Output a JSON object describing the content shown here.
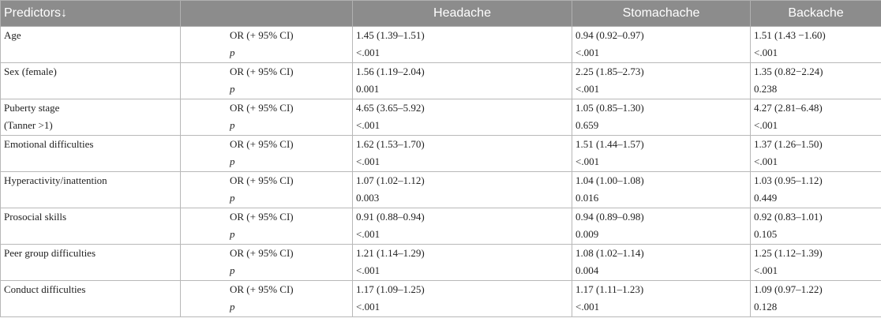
{
  "header": {
    "columns": [
      "Predictors↓",
      "Headache",
      "Stomachache",
      "Backache"
    ]
  },
  "rows": [
    {
      "predictor": "Age",
      "labels": [
        "OR (+ 95% CI)",
        "p"
      ],
      "headache": [
        "1.45 (1.39–1.51)",
        "<.001"
      ],
      "stomachache": [
        "0.94 (0.92–0.97)",
        "<.001"
      ],
      "backache": [
        "1.51 (1.43 −1.60)",
        "<.001"
      ]
    },
    {
      "predictor": "Sex (female)",
      "labels": [
        "OR (+ 95% CI)",
        "p"
      ],
      "headache": [
        "1.56 (1.19–2.04)",
        "0.001"
      ],
      "stomachache": [
        "2.25 (1.85–2.73)",
        "<.001"
      ],
      "backache": [
        "1.35 (0.82−2.24)",
        "0.238"
      ]
    },
    {
      "predictor": [
        "Puberty stage",
        "(Tanner >1)"
      ],
      "labels": [
        "OR (+ 95% CI)",
        "p"
      ],
      "headache": [
        "4.65 (3.65–5.92)",
        "<.001"
      ],
      "stomachache": [
        "1.05 (0.85–1.30)",
        "0.659"
      ],
      "backache": [
        "4.27 (2.81–6.48)",
        "<.001"
      ]
    },
    {
      "predictor": "Emotional difficulties",
      "labels": [
        "OR (+ 95% CI)",
        "p"
      ],
      "headache": [
        "1.62 (1.53–1.70)",
        "<.001"
      ],
      "stomachache": [
        "1.51 (1.44–1.57)",
        "<.001"
      ],
      "backache": [
        "1.37 (1.26–1.50)",
        "<.001"
      ]
    },
    {
      "predictor": "Hyperactivity/inattention",
      "labels": [
        "OR (+ 95% CI)",
        "p"
      ],
      "headache": [
        "1.07 (1.02–1.12)",
        "0.003"
      ],
      "stomachache": [
        "1.04 (1.00–1.08)",
        "0.016"
      ],
      "backache": [
        "1.03 (0.95–1.12)",
        "0.449"
      ]
    },
    {
      "predictor": "Prosocial skills",
      "labels": [
        "OR (+ 95% CI)",
        "p"
      ],
      "headache": [
        "0.91 (0.88–0.94)",
        "<.001"
      ],
      "stomachache": [
        "0.94 (0.89–0.98)",
        "0.009"
      ],
      "backache": [
        "0.92 (0.83–1.01)",
        "0.105"
      ]
    },
    {
      "predictor": "Peer group difficulties",
      "labels": [
        "OR (+ 95% CI)",
        "p"
      ],
      "headache": [
        "1.21 (1.14–1.29)",
        "<.001"
      ],
      "stomachache": [
        "1.08 (1.02–1.14)",
        "0.004"
      ],
      "backache": [
        "1.25 (1.12–1.39)",
        "<.001"
      ]
    },
    {
      "predictor": "Conduct difficulties",
      "labels": [
        "OR (+ 95% CI)",
        "p"
      ],
      "headache": [
        "1.17 (1.09–1.25)",
        "<.001"
      ],
      "stomachache": [
        "1.17 (1.11–1.23)",
        "<.001"
      ],
      "backache": [
        "1.09 (0.97–1.22)",
        "0.128"
      ]
    }
  ]
}
